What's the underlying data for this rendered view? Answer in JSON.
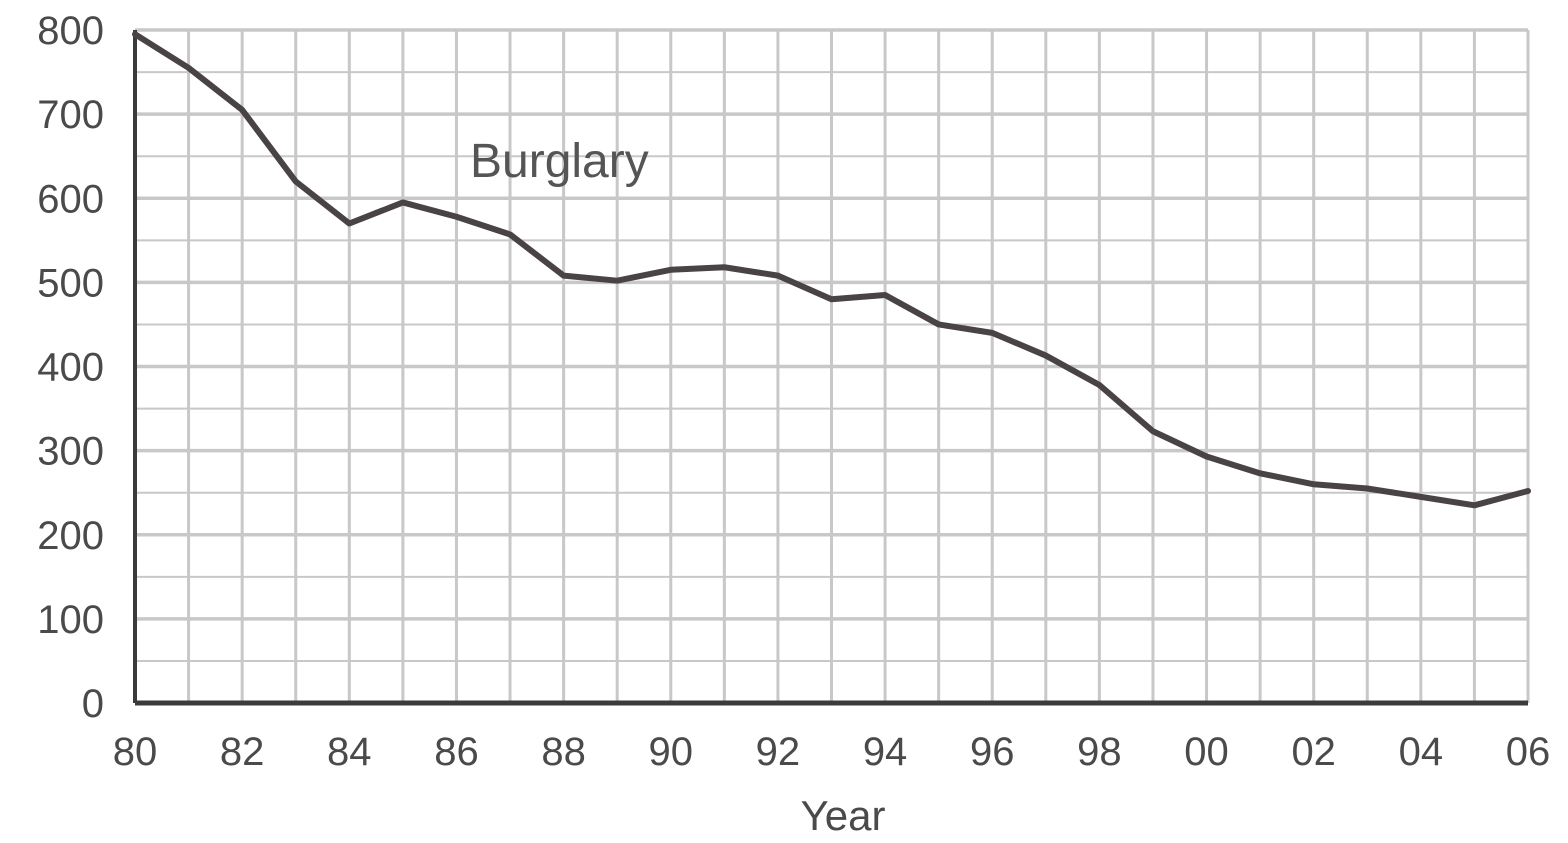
{
  "chart_data": {
    "type": "line",
    "title": "",
    "xlabel": "Year",
    "ylabel": "",
    "ylim": [
      0,
      800
    ],
    "xlim": [
      1980,
      2006
    ],
    "grid": true,
    "x": [
      1980,
      1981,
      1982,
      1983,
      1984,
      1985,
      1986,
      1987,
      1988,
      1989,
      1990,
      1991,
      1992,
      1993,
      1994,
      1995,
      1996,
      1997,
      1998,
      1999,
      2000,
      2001,
      2002,
      2003,
      2004,
      2005,
      2006
    ],
    "x_tick_values": [
      1980,
      1982,
      1984,
      1986,
      1988,
      1990,
      1992,
      1994,
      1996,
      1998,
      2000,
      2002,
      2004,
      2006
    ],
    "x_tick_labels": [
      "80",
      "82",
      "84",
      "86",
      "88",
      "90",
      "92",
      "94",
      "96",
      "98",
      "00",
      "02",
      "04",
      "06"
    ],
    "y_tick_values": [
      0,
      100,
      200,
      300,
      400,
      500,
      600,
      700,
      800
    ],
    "y_tick_labels": [
      "0",
      "100",
      "200",
      "300",
      "400",
      "500",
      "600",
      "700",
      "800"
    ],
    "series": [
      {
        "name": "Burglary",
        "values": [
          795,
          755,
          705,
          620,
          570,
          595,
          578,
          557,
          508,
          502,
          515,
          518,
          508,
          480,
          485,
          450,
          440,
          413,
          378,
          323,
          293,
          273,
          260,
          255,
          245,
          235,
          252
        ]
      }
    ],
    "colors": {
      "line": "#4a4346",
      "grid": "#c8c8c8",
      "axis": "#3d3a3c",
      "text": "#4a4a4a"
    }
  }
}
